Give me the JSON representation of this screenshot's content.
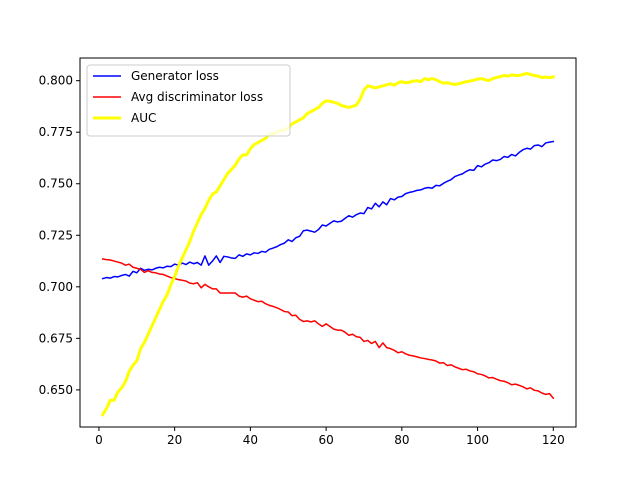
{
  "chart_data": {
    "type": "line",
    "title": "",
    "xlabel": "",
    "ylabel": "",
    "xlim": [
      -5,
      126
    ],
    "ylim": [
      0.632,
      0.811
    ],
    "xticks": [
      0,
      20,
      40,
      60,
      80,
      100,
      120
    ],
    "yticks": [
      0.65,
      0.675,
      0.7,
      0.725,
      0.75,
      0.775,
      0.8
    ],
    "ytick_labels": [
      "0.650",
      "0.675",
      "0.700",
      "0.725",
      "0.750",
      "0.775",
      "0.800"
    ],
    "grid": false,
    "legend_position": "upper-left",
    "series": [
      {
        "name": "Generator loss",
        "color": "#0000ff",
        "line_width": 1.5,
        "x": [
          1,
          2,
          3,
          4,
          5,
          6,
          7,
          8,
          9,
          10,
          11,
          12,
          13,
          14,
          15,
          16,
          17,
          18,
          19,
          20,
          21,
          22,
          23,
          24,
          25,
          26,
          27,
          28,
          29,
          30,
          31,
          32,
          33,
          34,
          35,
          36,
          37,
          38,
          39,
          40,
          41,
          42,
          43,
          44,
          45,
          46,
          47,
          48,
          49,
          50,
          51,
          52,
          53,
          54,
          55,
          56,
          57,
          58,
          59,
          60,
          61,
          62,
          63,
          64,
          65,
          66,
          67,
          68,
          69,
          70,
          71,
          72,
          73,
          74,
          75,
          76,
          77,
          78,
          79,
          80,
          81,
          82,
          83,
          84,
          85,
          86,
          87,
          88,
          89,
          90,
          91,
          92,
          93,
          94,
          95,
          96,
          97,
          98,
          99,
          100,
          101,
          102,
          103,
          104,
          105,
          106,
          107,
          108,
          109,
          110,
          111,
          112,
          113,
          114,
          115,
          116,
          117,
          118,
          119,
          120
        ],
        "y": [
          0.704,
          0.7045,
          0.7042,
          0.705,
          0.7048,
          0.7055,
          0.706,
          0.7052,
          0.7075,
          0.7068,
          0.709,
          0.708,
          0.7085,
          0.7082,
          0.709,
          0.7095,
          0.7092,
          0.71,
          0.7098,
          0.711,
          0.7105,
          0.7115,
          0.7108,
          0.712,
          0.7112,
          0.7118,
          0.7105,
          0.715,
          0.7105,
          0.7125,
          0.715,
          0.7118,
          0.7148,
          0.7145,
          0.714,
          0.7138,
          0.7155,
          0.7148,
          0.716,
          0.7155,
          0.7165,
          0.7162,
          0.7172,
          0.7168,
          0.7182,
          0.7188,
          0.7195,
          0.7205,
          0.7212,
          0.7228,
          0.722,
          0.7238,
          0.7245,
          0.7272,
          0.7275,
          0.727,
          0.7265,
          0.7278,
          0.73,
          0.7295,
          0.7308,
          0.732,
          0.7315,
          0.7318,
          0.7332,
          0.7345,
          0.7338,
          0.735,
          0.7358,
          0.7355,
          0.7385,
          0.7378,
          0.7405,
          0.7388,
          0.7412,
          0.7398,
          0.7428,
          0.7422,
          0.7435,
          0.7438,
          0.7452,
          0.7458,
          0.7462,
          0.7468,
          0.747,
          0.7478,
          0.7482,
          0.7478,
          0.7492,
          0.749,
          0.7502,
          0.7512,
          0.752,
          0.7535,
          0.7542,
          0.7548,
          0.756,
          0.7568,
          0.7565,
          0.7588,
          0.7582,
          0.7595,
          0.7602,
          0.7615,
          0.7612,
          0.7618,
          0.7632,
          0.7628,
          0.7642,
          0.7635,
          0.7652,
          0.7665,
          0.7672,
          0.7668,
          0.7685,
          0.7688,
          0.768,
          0.7698,
          0.7702,
          0.7705
        ]
      },
      {
        "name": "Avg discriminator loss",
        "color": "#ff0000",
        "line_width": 1.5,
        "x": [
          1,
          2,
          3,
          4,
          5,
          6,
          7,
          8,
          9,
          10,
          11,
          12,
          13,
          14,
          15,
          16,
          17,
          18,
          19,
          20,
          21,
          22,
          23,
          24,
          25,
          26,
          27,
          28,
          29,
          30,
          31,
          32,
          33,
          34,
          35,
          36,
          37,
          38,
          39,
          40,
          41,
          42,
          43,
          44,
          45,
          46,
          47,
          48,
          49,
          50,
          51,
          52,
          53,
          54,
          55,
          56,
          57,
          58,
          59,
          60,
          61,
          62,
          63,
          64,
          65,
          66,
          67,
          68,
          69,
          70,
          71,
          72,
          73,
          74,
          75,
          76,
          77,
          78,
          79,
          80,
          81,
          82,
          83,
          84,
          85,
          86,
          87,
          88,
          89,
          90,
          91,
          92,
          93,
          94,
          95,
          96,
          97,
          98,
          99,
          100,
          101,
          102,
          103,
          104,
          105,
          106,
          107,
          108,
          109,
          110,
          111,
          112,
          113,
          114,
          115,
          116,
          117,
          118,
          119,
          120
        ],
        "y": [
          0.7135,
          0.7132,
          0.713,
          0.7125,
          0.712,
          0.7115,
          0.7105,
          0.711,
          0.7095,
          0.709,
          0.7085,
          0.707,
          0.7078,
          0.707,
          0.7068,
          0.7062,
          0.706,
          0.7052,
          0.7045,
          0.704,
          0.7035,
          0.7032,
          0.7028,
          0.7018,
          0.7015,
          0.702,
          0.6995,
          0.7012,
          0.7,
          0.699,
          0.699,
          0.697,
          0.697,
          0.697,
          0.697,
          0.697,
          0.6955,
          0.695,
          0.6955,
          0.6942,
          0.6935,
          0.6928,
          0.693,
          0.6918,
          0.691,
          0.6905,
          0.6898,
          0.689,
          0.688,
          0.6878,
          0.686,
          0.6862,
          0.6842,
          0.6832,
          0.6835,
          0.683,
          0.6835,
          0.682,
          0.6808,
          0.682,
          0.6808,
          0.6795,
          0.679,
          0.679,
          0.678,
          0.6765,
          0.677,
          0.6758,
          0.6755,
          0.6735,
          0.674,
          0.6725,
          0.6735,
          0.6705,
          0.6728,
          0.6705,
          0.67,
          0.6692,
          0.668,
          0.6685,
          0.6675,
          0.6668,
          0.6665,
          0.666,
          0.6655,
          0.6652,
          0.6648,
          0.6645,
          0.664,
          0.663,
          0.6632,
          0.6618,
          0.6622,
          0.6612,
          0.6605,
          0.6598,
          0.66,
          0.6592,
          0.6588,
          0.6578,
          0.6575,
          0.6568,
          0.6558,
          0.656,
          0.6552,
          0.6545,
          0.6542,
          0.6535,
          0.6525,
          0.6528,
          0.6522,
          0.6515,
          0.6505,
          0.651,
          0.6498,
          0.6495,
          0.6485,
          0.6478,
          0.6482,
          0.646
        ]
      },
      {
        "name": "AUC",
        "color": "#ffff00",
        "line_width": 3,
        "x": [
          1,
          2,
          3,
          4,
          5,
          6,
          7,
          8,
          9,
          10,
          11,
          12,
          13,
          14,
          15,
          16,
          17,
          18,
          19,
          20,
          21,
          22,
          23,
          24,
          25,
          26,
          27,
          28,
          29,
          30,
          31,
          32,
          33,
          34,
          35,
          36,
          37,
          38,
          39,
          40,
          41,
          42,
          43,
          44,
          45,
          46,
          47,
          48,
          49,
          50,
          51,
          52,
          53,
          54,
          55,
          56,
          57,
          58,
          59,
          60,
          61,
          62,
          63,
          64,
          65,
          66,
          67,
          68,
          69,
          70,
          71,
          72,
          73,
          74,
          75,
          76,
          77,
          78,
          79,
          80,
          81,
          82,
          83,
          84,
          85,
          86,
          87,
          88,
          89,
          90,
          91,
          92,
          93,
          94,
          95,
          96,
          97,
          98,
          99,
          100,
          101,
          102,
          103,
          104,
          105,
          106,
          107,
          108,
          109,
          110,
          111,
          112,
          113,
          114,
          115,
          116,
          117,
          118,
          119,
          120
        ],
        "y": [
          0.638,
          0.641,
          0.645,
          0.645,
          0.649,
          0.651,
          0.654,
          0.659,
          0.662,
          0.664,
          0.67,
          0.673,
          0.677,
          0.681,
          0.685,
          0.689,
          0.693,
          0.696,
          0.701,
          0.705,
          0.71,
          0.714,
          0.718,
          0.722,
          0.727,
          0.731,
          0.735,
          0.738,
          0.742,
          0.745,
          0.746,
          0.749,
          0.752,
          0.755,
          0.757,
          0.759,
          0.762,
          0.764,
          0.764,
          0.767,
          0.769,
          0.77,
          0.771,
          0.772,
          0.774,
          0.774,
          0.775,
          0.776,
          0.776,
          0.777,
          0.779,
          0.78,
          0.781,
          0.782,
          0.784,
          0.785,
          0.786,
          0.787,
          0.789,
          0.7902,
          0.79,
          0.7895,
          0.789,
          0.788,
          0.7875,
          0.787,
          0.7875,
          0.7882,
          0.791,
          0.7955,
          0.7975,
          0.797,
          0.7965,
          0.797,
          0.7975,
          0.798,
          0.7985,
          0.7978,
          0.799,
          0.7995,
          0.799,
          0.7992,
          0.7998,
          0.8,
          0.7995,
          0.801,
          0.8005,
          0.801,
          0.8005,
          0.7995,
          0.7988,
          0.799,
          0.7985,
          0.7982,
          0.7985,
          0.799,
          0.7995,
          0.7998,
          0.8002,
          0.8008,
          0.801,
          0.8005,
          0.8,
          0.801,
          0.8015,
          0.802,
          0.8025,
          0.8022,
          0.8028,
          0.8025,
          0.8026,
          0.803,
          0.8035,
          0.803,
          0.8025,
          0.8022,
          0.8015,
          0.8018,
          0.8015,
          0.8018
        ]
      }
    ]
  }
}
